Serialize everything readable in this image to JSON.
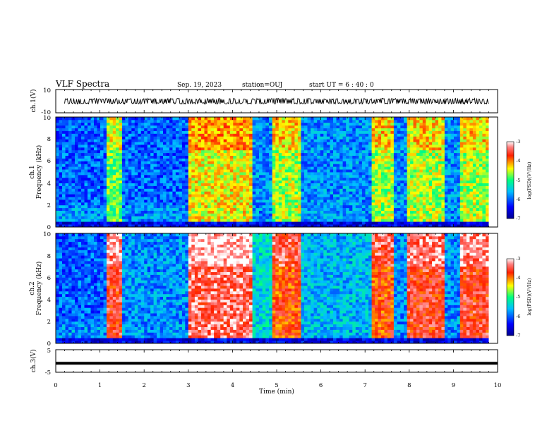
{
  "header": {
    "title": "VLF Spectra",
    "date": "Sep. 19, 2023",
    "station": "station=OUJ",
    "start": "start  UT =  6 : 40 : 0"
  },
  "chart_data": [
    {
      "type": "line",
      "panel": "ch1-waveform",
      "ylabel": "ch.1(V)",
      "ylim": [
        -10,
        10
      ],
      "y_ticks": [
        "10",
        "-10"
      ],
      "xlim": [
        0,
        10
      ],
      "series": [
        {
          "values_note_band": [
            -2,
            2
          ]
        }
      ]
    },
    {
      "type": "heatmap",
      "panel": "ch1-spectrogram",
      "ylabel_line1": "ch.1",
      "ylabel_line2": "Frequency (kHz)",
      "ylim": [
        0,
        10
      ],
      "y_ticks": [
        "0",
        "2",
        "4",
        "6",
        "8",
        "10"
      ],
      "xlim": [
        0,
        10
      ],
      "colorbar": {
        "label": "log(PSD)(V²/Hz)",
        "range": [
          -7,
          -3
        ],
        "ticks": [
          "-3",
          "-4",
          "-5",
          "-6",
          "-7"
        ]
      },
      "segments": [
        {
          "x0": 0.0,
          "x1": 1.15,
          "level": 0.25
        },
        {
          "x0": 1.15,
          "x1": 1.5,
          "level": 0.55
        },
        {
          "x0": 1.5,
          "x1": 3.0,
          "level": 0.25
        },
        {
          "x0": 3.0,
          "x1": 4.45,
          "level": 0.65
        },
        {
          "x0": 4.45,
          "x1": 4.9,
          "level": 0.3
        },
        {
          "x0": 4.9,
          "x1": 5.55,
          "level": 0.6
        },
        {
          "x0": 5.55,
          "x1": 7.15,
          "level": 0.3
        },
        {
          "x0": 7.15,
          "x1": 7.65,
          "level": 0.6
        },
        {
          "x0": 7.65,
          "x1": 7.95,
          "level": 0.3
        },
        {
          "x0": 7.95,
          "x1": 8.8,
          "level": 0.6
        },
        {
          "x0": 8.8,
          "x1": 9.15,
          "level": 0.3
        },
        {
          "x0": 9.15,
          "x1": 9.8,
          "level": 0.6
        }
      ]
    },
    {
      "type": "heatmap",
      "panel": "ch2-spectrogram",
      "ylabel_line1": "ch.2",
      "ylabel_line2": "Frequency (kHz)",
      "ylim": [
        0,
        10
      ],
      "y_ticks": [
        "0",
        "2",
        "4",
        "6",
        "8",
        "10"
      ],
      "xlim": [
        0,
        10
      ],
      "colorbar": {
        "label": "log(PSD)(V²/Hz)",
        "range": [
          -7,
          -3
        ],
        "ticks": [
          "-3",
          "-4",
          "-5",
          "-6",
          "-7"
        ]
      },
      "segments": [
        {
          "x0": 0.0,
          "x1": 1.15,
          "level": 0.25
        },
        {
          "x0": 1.15,
          "x1": 1.5,
          "level": 0.85
        },
        {
          "x0": 1.5,
          "x1": 3.0,
          "level": 0.3
        },
        {
          "x0": 3.0,
          "x1": 4.45,
          "level": 0.9
        },
        {
          "x0": 4.45,
          "x1": 4.9,
          "level": 0.4
        },
        {
          "x0": 4.9,
          "x1": 5.55,
          "level": 0.8
        },
        {
          "x0": 5.55,
          "x1": 7.15,
          "level": 0.35
        },
        {
          "x0": 7.15,
          "x1": 7.65,
          "level": 0.8
        },
        {
          "x0": 7.65,
          "x1": 7.95,
          "level": 0.3
        },
        {
          "x0": 7.95,
          "x1": 8.8,
          "level": 0.85
        },
        {
          "x0": 8.8,
          "x1": 9.15,
          "level": 0.3
        },
        {
          "x0": 9.15,
          "x1": 9.8,
          "level": 0.85
        }
      ]
    },
    {
      "type": "line",
      "panel": "ch3-waveform",
      "ylabel": "ch.3(V)",
      "ylim": [
        -5,
        5
      ],
      "y_ticks": [
        "5",
        "-5"
      ],
      "xlim": [
        0,
        10
      ],
      "series": [
        {
          "constant": -1.0
        }
      ]
    }
  ],
  "x_axis": {
    "label": "Time (min)",
    "ticks": [
      "0",
      "1",
      "2",
      "3",
      "4",
      "5",
      "6",
      "7",
      "8",
      "9",
      "10"
    ]
  }
}
